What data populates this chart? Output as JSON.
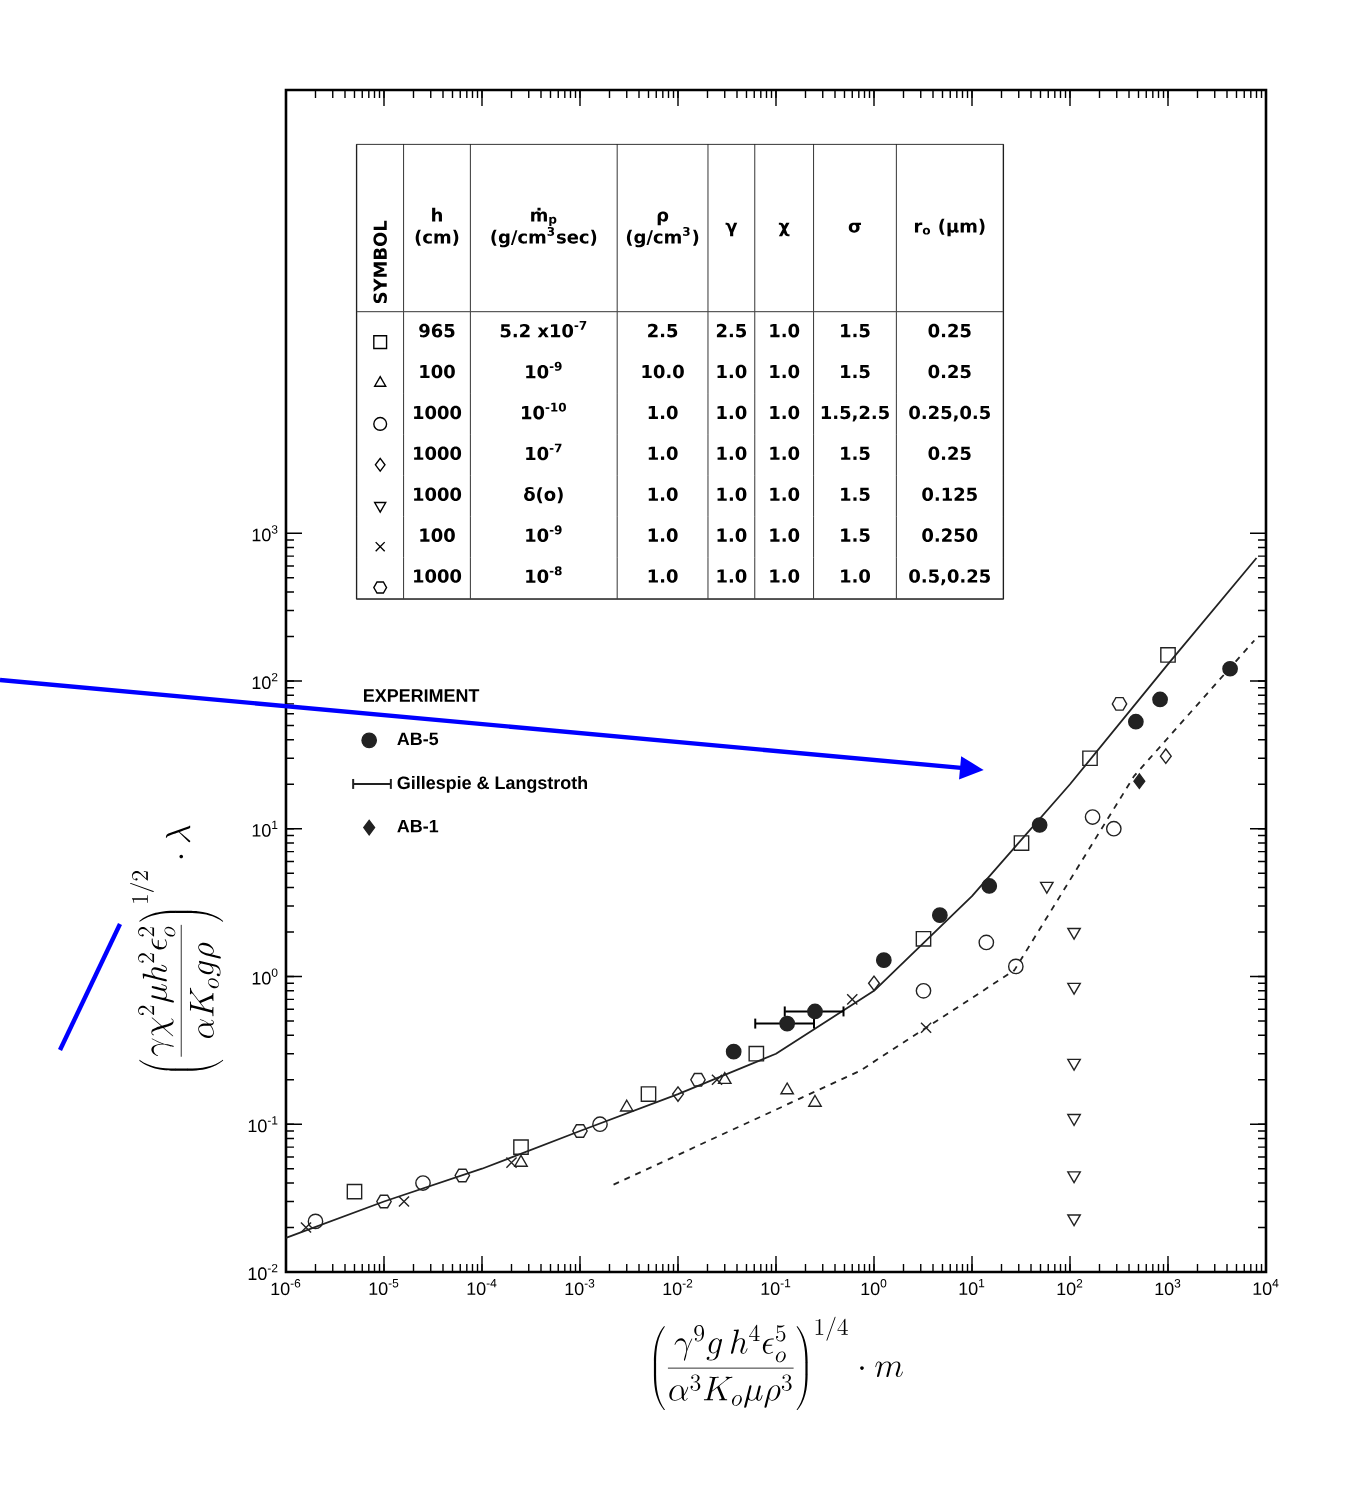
{
  "chart_data": {
    "type": "scatter",
    "xlabel": "\\left(\\frac{\\gamma^{9} g\\, h^{4} \\epsilon_{o}^{5}}{\\alpha^{3} K_{o} \\mu \\rho^{3}}\\right)^{1/4}\\cdot m",
    "ylabel": "\\left(\\frac{\\gamma \\chi^{2} \\mu h^{2} \\epsilon_{o}^{2}}{\\alpha K_{o} g \\rho}\\right)^{1/2}\\cdot \\lambda",
    "log": "xy",
    "grid": false,
    "legend": "left",
    "legend_title": "EXPERIMENT",
    "xlim": [
      1e-06,
      10000
    ],
    "ylim": [
      0.01,
      1000000
    ],
    "xticks": [
      {
        "value": 1e-06,
        "label": "10$^{-6}$"
      },
      {
        "value": 1e-05,
        "label": "10$^{-5}$"
      },
      {
        "value": 0.0001,
        "label": "10$^{-4}$"
      },
      {
        "value": 0.001,
        "label": "10$^{-3}$"
      },
      {
        "value": 0.01,
        "label": "10$^{-2}$"
      },
      {
        "value": 0.1,
        "label": "10$^{-1}$"
      },
      {
        "value": 1,
        "label": "10$^{0}$"
      },
      {
        "value": 10,
        "label": "10$^{1}$"
      },
      {
        "value": 100,
        "label": "10$^{2}$"
      },
      {
        "value": 1000,
        "label": "10$^{3}$"
      },
      {
        "value": 10000,
        "label": "10$^{4}$"
      }
    ],
    "yticks": [
      {
        "value": 0.01,
        "label": "10$^{-2}$"
      },
      {
        "value": 0.1,
        "label": "10$^{-1}$"
      },
      {
        "value": 1,
        "label": "10$^{0}$"
      },
      {
        "value": 10,
        "label": "10$^{1}$"
      },
      {
        "value": 100,
        "label": "10$^{2}$"
      },
      {
        "value": 1000,
        "label": "10$^{3}$"
      }
    ],
    "series": [
      {
        "type": "scatter",
        "marker": "square-open",
        "color": "#222222",
        "x": [
          5e-06,
          0.00025,
          0.005,
          0.063,
          3.2,
          32,
          160,
          1000
        ],
        "values": [
          0.035,
          0.07,
          0.16,
          0.3,
          1.8,
          8,
          30,
          150
        ]
      },
      {
        "type": "scatter",
        "marker": "triangle-open",
        "color": "#222222",
        "x": [
          0.00025,
          0.003,
          0.03,
          0.13,
          0.25
        ],
        "values": [
          0.055,
          0.13,
          0.2,
          0.17,
          0.14
        ]
      },
      {
        "type": "scatter",
        "marker": "circle-open",
        "color": "#222222",
        "x": [
          2e-06,
          2.5e-05,
          0.0016,
          3.2,
          14,
          28,
          170,
          280
        ],
        "values": [
          0.022,
          0.04,
          0.1,
          0.8,
          1.7,
          1.17,
          12,
          10
        ]
      },
      {
        "type": "scatter",
        "marker": "diamond-open",
        "color": "#222222",
        "x": [
          0.01,
          1,
          950
        ],
        "values": [
          0.16,
          0.9,
          31
        ]
      },
      {
        "type": "scatter",
        "marker": "triangle-down-open",
        "color": "#222222",
        "x": [
          58,
          110,
          110,
          110,
          110,
          110,
          110
        ],
        "values": [
          4.1,
          2,
          0.85,
          0.26,
          0.11,
          0.045,
          0.023
        ]
      },
      {
        "type": "scatter",
        "marker": "cross",
        "color": "#222222",
        "x": [
          1.6e-06,
          1.6e-05,
          0.0002,
          0.025,
          0.6,
          3.4
        ],
        "values": [
          0.02,
          0.03,
          0.055,
          0.2,
          0.7,
          0.45
        ]
      },
      {
        "type": "scatter",
        "color": "#222222",
        "x": [
          1e-05,
          6.3e-05,
          0.001,
          0.016,
          320
        ],
        "values": [
          0.03,
          0.045,
          0.09,
          0.2,
          70
        ]
      },
      {
        "type": "scatter",
        "name": "AB-5",
        "marker": "circle",
        "color": "#222222",
        "x": [
          0.037,
          1.26,
          4.7,
          15,
          49,
          470,
          830,
          4300
        ],
        "values": [
          0.31,
          1.29,
          2.6,
          4.1,
          10.6,
          53,
          75,
          121
        ]
      },
      {
        "type": "scatter",
        "name": "Gillespie & Langstroth",
        "color": "#222222",
        "x": [
          0.13,
          0.25
        ],
        "values": [
          0.48,
          0.58
        ],
        "xerrors": [
          [
            0.06,
            0.25
          ],
          [
            0.12,
            0.5
          ]
        ]
      },
      {
        "type": "scatter",
        "name": "AB-1",
        "marker": "diamond",
        "color": "#222222",
        "x": [
          510
        ],
        "values": [
          21
        ]
      },
      {
        "type": "line",
        "line_style": "solid",
        "color": "#222222",
        "x": [
          1e-06,
          1e-05,
          0.0001,
          0.001,
          0.01,
          0.1,
          1,
          10,
          100,
          1000,
          8000
        ],
        "values": [
          0.017,
          0.03,
          0.05,
          0.09,
          0.16,
          0.3,
          0.8,
          3.5,
          20,
          130,
          680
        ]
      },
      {
        "type": "line",
        "line_style": "dashed",
        "color": "#222222",
        "x": [
          0.0022,
          0.72,
          27,
          450,
          7600
        ],
        "values": [
          0.039,
          0.23,
          1.1,
          22.7,
          188
        ]
      }
    ],
    "annotations": [
      "SYMBOL",
      "h (cm)",
      "ṁ$_{p}$ (g/cm$^{3}$sec)",
      "ρ (g/cm$^{3}$)",
      "γ",
      "χ",
      "σ",
      "r$_{o}$ (μm)",
      "965",
      "5.2 x10$^{-7}$",
      "2.5",
      "2.5",
      "1.0",
      "1.5",
      "0.25",
      "100",
      "10$^{-9}$",
      "10.0",
      "1.0",
      "1.0",
      "1.5",
      "0.25",
      "1000",
      "10$^{-10}$",
      "1.0",
      "1.0",
      "1.0",
      "1.5,2.5",
      "0.25,0.5",
      "1000",
      "10$^{-7}$",
      "1.0",
      "1.0",
      "1.0",
      "1.5",
      "0.25",
      "1000",
      "δ(o)",
      "1.0",
      "1.0",
      "1.0",
      "1.5",
      "0.125",
      "100",
      "10$^{-9}$",
      "1.0",
      "1.0",
      "1.0",
      "1.5",
      "0.250",
      "1000",
      "10$^{-8}$",
      "1.0",
      "1.0",
      "1.0",
      "1.0",
      "0.5,0.25"
    ]
  }
}
